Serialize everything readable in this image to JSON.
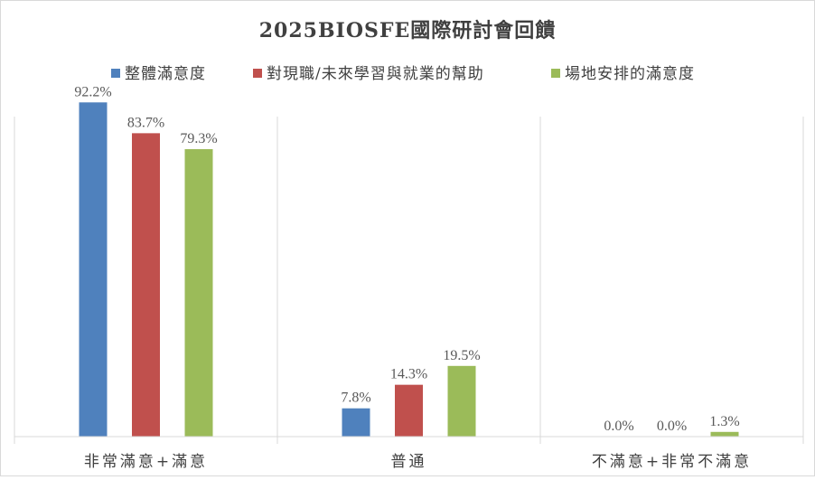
{
  "chart_data": {
    "type": "bar",
    "title": "2025BIOSFE國際研討會回饋",
    "categories": [
      "非常滿意+滿意",
      "普通",
      "不滿意+非常不滿意"
    ],
    "series": [
      {
        "name": "整體滿意度",
        "color": "#4f81bd",
        "values": [
          92.2,
          7.8,
          0.0
        ],
        "labels": [
          "92.2%",
          "7.8%",
          "0.0%"
        ]
      },
      {
        "name": "對現職/未來學習與就業的幫助",
        "color": "#c0504d",
        "values": [
          83.7,
          14.3,
          0.0
        ],
        "labels": [
          "83.7%",
          "14.3%",
          "0.0%"
        ]
      },
      {
        "name": "場地安排的滿意度",
        "color": "#9bbb59",
        "values": [
          79.3,
          19.5,
          1.3
        ],
        "labels": [
          "79.3%",
          "19.5%",
          "1.3%"
        ]
      }
    ],
    "ylim": [
      0,
      100
    ],
    "legend_position": "top",
    "grid": false
  }
}
